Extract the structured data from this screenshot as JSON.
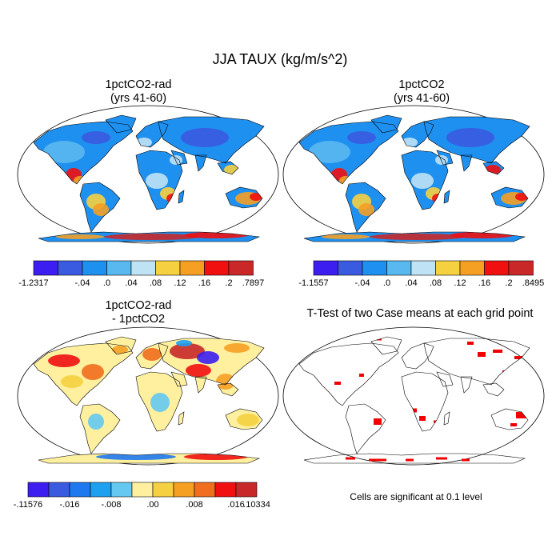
{
  "title": "JJA TAUX (kg/m/s^2)",
  "panels": [
    {
      "id": "rad",
      "title_line1": "1pctCO2-rad",
      "title_line2": "(yrs 41-60)"
    },
    {
      "id": "ctl",
      "title_line1": "1pctCO2",
      "title_line2": "(yrs 41-60)"
    },
    {
      "id": "diff",
      "title_line1": "1pctCO2-rad",
      "title_line2": "- 1pctCO2"
    },
    {
      "id": "ttest",
      "title_line1": "T-Test of two Case means at each grid point",
      "title_line2": ""
    }
  ],
  "colorbars": {
    "rad": {
      "colors": [
        "#3c1ef0",
        "#3a5ae0",
        "#1e90f0",
        "#5ab8f0",
        "#bfe2f5",
        "#f5d040",
        "#f5a023",
        "#f01010",
        "#c82828"
      ],
      "labels": [
        "-1.2317",
        "-.04",
        ".0",
        ".04",
        ".08",
        ".12",
        ".16",
        ".2",
        ".7897"
      ]
    },
    "ctl": {
      "colors": [
        "#3c1ef0",
        "#3a5ae0",
        "#1e90f0",
        "#5ab8f0",
        "#bfe2f5",
        "#f5d040",
        "#f5a023",
        "#f01010",
        "#c82828"
      ],
      "labels": [
        "-1.1557",
        "-.04",
        ".0",
        ".04",
        ".08",
        ".12",
        ".16",
        ".2",
        ".8495"
      ]
    },
    "diff": {
      "colors": [
        "#3c1ef0",
        "#3a5ae0",
        "#1e78f0",
        "#1ea0f0",
        "#64c8f0",
        "#fff0a0",
        "#f5d040",
        "#f5a023",
        "#f06e1e",
        "#f01010",
        "#c82828"
      ],
      "labels": [
        "-.11576",
        "-.016",
        "-.008",
        ".00",
        ".008",
        ".016",
        ".10334"
      ]
    }
  },
  "footnote": "Cells are significant at 0.1 level",
  "colors": {
    "significant": "#f00000",
    "land_outline": "#000000"
  }
}
